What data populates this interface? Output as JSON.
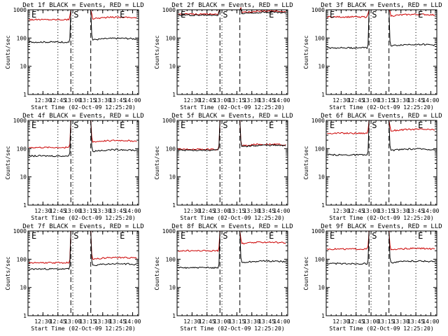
{
  "chart_data": [
    {
      "type": "line",
      "title": "Det 1f BLACK = Events, RED = LLD",
      "xlabel": "Start Time (02-Oct-09 12:25:20)",
      "ylabel": "Counts/sec",
      "yscale": "log",
      "ylim": [
        1,
        1000
      ],
      "ytick_labels": [
        "1000",
        "100",
        "10",
        "1"
      ],
      "xtick_labels": [
        "12:30",
        "12:45",
        "13:00",
        "13:15",
        "13:30",
        "13:45",
        "14:00"
      ],
      "markers": [
        "E",
        "S",
        "E"
      ],
      "series": [
        {
          "name": "LLD",
          "color": "#cc0000",
          "pre": 450,
          "post": 480
        },
        {
          "name": "Events",
          "color": "#000000",
          "pre": 72,
          "post": 85
        }
      ]
    },
    {
      "type": "line",
      "title": "Det 2f BLACK = Events, RED = LLD",
      "xlabel": "Start Time (02-Oct-09 12:25:20)",
      "ylabel": "Counts/sec",
      "yscale": "log",
      "ylim": [
        1,
        1000
      ],
      "ytick_labels": [
        "1000",
        "100",
        "10",
        "1"
      ],
      "xtick_labels": [
        "12:30",
        "12:45",
        "13:00",
        "13:15",
        "13:30",
        "13:45",
        "14:00"
      ],
      "markers": [
        "E",
        "S",
        "E"
      ],
      "series": [
        {
          "name": "LLD",
          "color": "#cc0000",
          "pre": 700,
          "post": 780
        },
        {
          "name": "Events",
          "color": "#000000",
          "pre": 650,
          "post": 720
        }
      ]
    },
    {
      "type": "line",
      "title": "Det 3f BLACK = Events, RED = LLD",
      "xlabel": "Start Time (02-Oct-09 12:25:20)",
      "ylabel": "Counts/sec",
      "yscale": "log",
      "ylim": [
        1,
        1000
      ],
      "ytick_labels": [
        "1000",
        "100",
        "10",
        "1"
      ],
      "xtick_labels": [
        "12:30",
        "12:45",
        "13:00",
        "13:15",
        "13:30",
        "13:45",
        "14:00"
      ],
      "markers": [
        "E",
        "S",
        "E"
      ],
      "series": [
        {
          "name": "LLD",
          "color": "#cc0000",
          "pre": 560,
          "post": 600
        },
        {
          "name": "Events",
          "color": "#000000",
          "pre": 45,
          "post": 52
        }
      ]
    },
    {
      "type": "line",
      "title": "Det 4f BLACK = Events, RED = LLD",
      "xlabel": "Start Time (02-Oct-09 12:25:20)",
      "ylabel": "Counts/sec",
      "yscale": "log",
      "ylim": [
        1,
        1000
      ],
      "ytick_labels": [
        "1000",
        "100",
        "10",
        "1"
      ],
      "xtick_labels": [
        "12:30",
        "12:45",
        "13:00",
        "13:15",
        "13:30",
        "13:45",
        "14:00"
      ],
      "markers": [
        "E",
        "S",
        "E"
      ],
      "series": [
        {
          "name": "LLD",
          "color": "#cc0000",
          "pre": 110,
          "post": 170
        },
        {
          "name": "Events",
          "color": "#000000",
          "pre": 55,
          "post": 80
        }
      ]
    },
    {
      "type": "line",
      "title": "Det 5f BLACK = Events, RED = LLD",
      "xlabel": "Start Time (02-Oct-09 12:25:20)",
      "ylabel": "Counts/sec",
      "yscale": "log",
      "ylim": [
        1,
        1000
      ],
      "ytick_labels": [
        "1000",
        "100",
        "10",
        "1"
      ],
      "xtick_labels": [
        "12:30",
        "12:45",
        "13:00",
        "13:15",
        "13:30",
        "13:45",
        "14:00"
      ],
      "markers": [
        "E",
        "S",
        "E"
      ],
      "series": [
        {
          "name": "LLD",
          "color": "#cc0000",
          "pre": 95,
          "post": 125
        },
        {
          "name": "Events",
          "color": "#000000",
          "pre": 88,
          "post": 115
        }
      ]
    },
    {
      "type": "line",
      "title": "Det 6f BLACK = Events, RED = LLD",
      "xlabel": "Start Time (02-Oct-09 12:25:20)",
      "ylabel": "Counts/sec",
      "yscale": "log",
      "ylim": [
        1,
        1000
      ],
      "ytick_labels": [
        "1000",
        "100",
        "10",
        "1"
      ],
      "xtick_labels": [
        "12:30",
        "12:45",
        "13:00",
        "13:15",
        "13:30",
        "13:45",
        "14:00"
      ],
      "markers": [
        "E",
        "S",
        "E"
      ],
      "series": [
        {
          "name": "LLD",
          "color": "#cc0000",
          "pre": 350,
          "post": 420
        },
        {
          "name": "Events",
          "color": "#000000",
          "pre": 60,
          "post": 85
        }
      ]
    },
    {
      "type": "line",
      "title": "Det 7f BLACK = Events, RED = LLD",
      "xlabel": "Start Time (02-Oct-09 12:25:20)",
      "ylabel": "Counts/sec",
      "yscale": "log",
      "ylim": [
        1,
        1000
      ],
      "ytick_labels": [
        "1000",
        "100",
        "10",
        "1"
      ],
      "xtick_labels": [
        "12:30",
        "12:45",
        "13:00",
        "13:15",
        "13:30",
        "13:45",
        "14:00"
      ],
      "markers": [
        "E",
        "S",
        "E"
      ],
      "series": [
        {
          "name": "LLD",
          "color": "#cc0000",
          "pre": 75,
          "post": 100
        },
        {
          "name": "Events",
          "color": "#000000",
          "pre": 45,
          "post": 60
        }
      ]
    },
    {
      "type": "line",
      "title": "Det 8f BLACK = Events, RED = LLD",
      "xlabel": "Start Time (02-Oct-09 12:25:20)",
      "ylabel": "Counts/sec",
      "yscale": "log",
      "ylim": [
        1,
        1000
      ],
      "ytick_labels": [
        "1000",
        "100",
        "10",
        "1"
      ],
      "xtick_labels": [
        "12:30",
        "12:45",
        "13:00",
        "13:15",
        "13:30",
        "13:45",
        "14:00"
      ],
      "markers": [
        "E",
        "S",
        "E"
      ],
      "series": [
        {
          "name": "LLD",
          "color": "#cc0000",
          "pre": 200,
          "post": 350
        },
        {
          "name": "Events",
          "color": "#000000",
          "pre": 50,
          "post": 75
        }
      ]
    },
    {
      "type": "line",
      "title": "Det 9f BLACK = Events, RED = LLD",
      "xlabel": "Start Time (02-Oct-09 12:25:20)",
      "ylabel": "Counts/sec",
      "yscale": "log",
      "ylim": [
        1,
        1000
      ],
      "ytick_labels": [
        "1000",
        "100",
        "10",
        "1"
      ],
      "xtick_labels": [
        "12:30",
        "12:45",
        "13:00",
        "13:15",
        "13:30",
        "13:45",
        "14:00"
      ],
      "markers": [
        "E",
        "S",
        "E"
      ],
      "series": [
        {
          "name": "LLD",
          "color": "#cc0000",
          "pre": 230,
          "post": 210
        },
        {
          "name": "Events",
          "color": "#000000",
          "pre": 70,
          "post": 75
        }
      ]
    }
  ]
}
